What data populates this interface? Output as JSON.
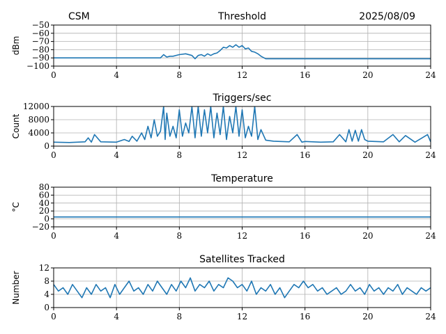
{
  "header": {
    "left": "CSM",
    "right": "2025/08/09"
  },
  "colors": {
    "series": "#1f77b4",
    "grid": "#b0b0b0",
    "axis": "#000000"
  },
  "chart_data": [
    {
      "type": "line",
      "title": "Threshold",
      "ylabel": "dBm",
      "xlim": [
        0,
        24
      ],
      "ylim": [
        -100,
        -50
      ],
      "xticks": [
        0,
        4,
        8,
        12,
        16,
        20,
        24
      ],
      "xtick_labels": [
        "0",
        "4",
        "8",
        "12",
        "16",
        "20",
        "24"
      ],
      "yticks": [
        -100,
        -90,
        -80,
        -70,
        -60,
        -50
      ],
      "ytick_labels": [
        "−100",
        "−90",
        "−80",
        "−70",
        "−60",
        "−50"
      ],
      "grid": true,
      "x": [
        0,
        1,
        2,
        3,
        4,
        5,
        6,
        6.8,
        7.0,
        7.2,
        7.4,
        7.6,
        8.0,
        8.4,
        8.8,
        9.0,
        9.2,
        9.4,
        9.6,
        9.8,
        10.0,
        10.2,
        10.4,
        10.6,
        10.8,
        11.0,
        11.2,
        11.4,
        11.6,
        11.8,
        12.0,
        12.2,
        12.4,
        12.6,
        12.8,
        13.0,
        13.2,
        13.5,
        14,
        16,
        18,
        20,
        22,
        24
      ],
      "y": [
        -90,
        -90,
        -90,
        -90,
        -90,
        -90,
        -90,
        -90,
        -86,
        -89,
        -88,
        -88,
        -86,
        -85,
        -87,
        -91,
        -87,
        -86,
        -88,
        -85,
        -87,
        -85,
        -84,
        -81,
        -77,
        -78,
        -75,
        -77,
        -74,
        -77,
        -75,
        -79,
        -78,
        -82,
        -83,
        -85,
        -88,
        -91,
        -91,
        -91,
        -91,
        -91,
        -91,
        -91
      ]
    },
    {
      "type": "line",
      "title": "Triggers/sec",
      "ylabel": "Count",
      "xlim": [
        0,
        24
      ],
      "ylim": [
        0,
        12000
      ],
      "xticks": [
        0,
        4,
        8,
        12,
        16,
        20,
        24
      ],
      "xtick_labels": [
        "0",
        "4",
        "8",
        "12",
        "16",
        "20",
        "24"
      ],
      "yticks": [
        0,
        4000,
        8000,
        12000
      ],
      "ytick_labels": [
        "0",
        "4000",
        "8000",
        "12000"
      ],
      "grid": true,
      "x": [
        0,
        1,
        2,
        2.2,
        2.4,
        2.6,
        3,
        4,
        4.5,
        4.8,
        5.0,
        5.3,
        5.6,
        5.8,
        6.0,
        6.2,
        6.4,
        6.6,
        6.8,
        7.0,
        7.1,
        7.2,
        7.4,
        7.6,
        7.8,
        8.0,
        8.2,
        8.4,
        8.6,
        8.8,
        9.0,
        9.2,
        9.4,
        9.6,
        9.8,
        10.0,
        10.2,
        10.4,
        10.6,
        10.8,
        11.0,
        11.2,
        11.4,
        11.6,
        11.8,
        12.0,
        12.2,
        12.4,
        12.6,
        12.8,
        13.0,
        13.2,
        13.5,
        14,
        15,
        15.5,
        15.8,
        16,
        17,
        17.8,
        18.2,
        18.6,
        18.8,
        19.0,
        19.2,
        19.4,
        19.6,
        19.8,
        20,
        21,
        21.6,
        22,
        22.4,
        23,
        23.8,
        24
      ],
      "y": [
        1200,
        1100,
        1300,
        2500,
        1200,
        3500,
        1300,
        1200,
        2000,
        1400,
        3000,
        1500,
        4000,
        2000,
        6000,
        2500,
        8000,
        3000,
        4500,
        12000,
        2000,
        10000,
        3000,
        6000,
        2500,
        11000,
        3000,
        7000,
        4000,
        12000,
        2500,
        12000,
        3000,
        11000,
        4000,
        12000,
        2500,
        10000,
        3500,
        12000,
        2000,
        9000,
        4000,
        12000,
        3000,
        11000,
        2500,
        6000,
        3000,
        12000,
        2000,
        5000,
        1800,
        1500,
        1300,
        3500,
        1200,
        1400,
        1200,
        1300,
        3500,
        1300,
        5000,
        1500,
        4800,
        1500,
        5000,
        2000,
        1500,
        1300,
        3500,
        1300,
        3200,
        1200,
        3500,
        1300
      ]
    },
    {
      "type": "line",
      "title": "Temperature",
      "ylabel": "°C",
      "xlim": [
        0,
        24
      ],
      "ylim": [
        -20,
        80
      ],
      "xticks": [
        0,
        4,
        8,
        12,
        16,
        20,
        24
      ],
      "xtick_labels": [
        "0",
        "4",
        "8",
        "12",
        "16",
        "20",
        "24"
      ],
      "yticks": [
        -20,
        0,
        20,
        40,
        60,
        80
      ],
      "ytick_labels": [
        "−20",
        "0",
        "20",
        "40",
        "60",
        "80"
      ],
      "grid": true,
      "x": [
        0,
        24
      ],
      "y": [
        5,
        5
      ]
    },
    {
      "type": "line",
      "title": "Satellites Tracked",
      "ylabel": "Number",
      "xlim": [
        0,
        24
      ],
      "ylim": [
        0,
        12
      ],
      "xticks": [
        0,
        4,
        8,
        12,
        16,
        20,
        24
      ],
      "xtick_labels": [
        "0",
        "4",
        "8",
        "12",
        "16",
        "20",
        "24"
      ],
      "yticks": [
        0,
        4,
        8,
        12
      ],
      "ytick_labels": [
        "0",
        "4",
        "8",
        "12"
      ],
      "grid": true,
      "x": [
        0,
        0.3,
        0.6,
        0.9,
        1.2,
        1.5,
        1.8,
        2.1,
        2.4,
        2.7,
        3.0,
        3.3,
        3.6,
        3.9,
        4.2,
        4.5,
        4.8,
        5.1,
        5.4,
        5.7,
        6.0,
        6.3,
        6.6,
        6.9,
        7.2,
        7.5,
        7.8,
        8.1,
        8.4,
        8.7,
        9.0,
        9.3,
        9.6,
        9.9,
        10.2,
        10.5,
        10.8,
        11.1,
        11.4,
        11.7,
        12.0,
        12.3,
        12.6,
        12.9,
        13.2,
        13.5,
        13.8,
        14.1,
        14.4,
        14.7,
        15.0,
        15.3,
        15.6,
        15.9,
        16.2,
        16.5,
        16.8,
        17.1,
        17.4,
        17.7,
        18.0,
        18.3,
        18.6,
        18.9,
        19.2,
        19.5,
        19.8,
        20.1,
        20.4,
        20.7,
        21.0,
        21.3,
        21.6,
        21.9,
        22.2,
        22.5,
        22.8,
        23.1,
        23.4,
        23.7,
        24.0
      ],
      "y": [
        7,
        5,
        6,
        4,
        7,
        5,
        3,
        6,
        4,
        7,
        5,
        6,
        3,
        7,
        4,
        6,
        8,
        5,
        6,
        4,
        7,
        5,
        8,
        6,
        4,
        7,
        5,
        8,
        6,
        9,
        5,
        7,
        6,
        8,
        5,
        7,
        6,
        9,
        8,
        6,
        7,
        5,
        8,
        4,
        6,
        5,
        7,
        4,
        6,
        3,
        5,
        7,
        6,
        8,
        6,
        7,
        5,
        6,
        4,
        5,
        6,
        4,
        5,
        7,
        5,
        6,
        4,
        7,
        5,
        6,
        4,
        6,
        5,
        7,
        4,
        6,
        5,
        4,
        6,
        5,
        6
      ]
    }
  ]
}
